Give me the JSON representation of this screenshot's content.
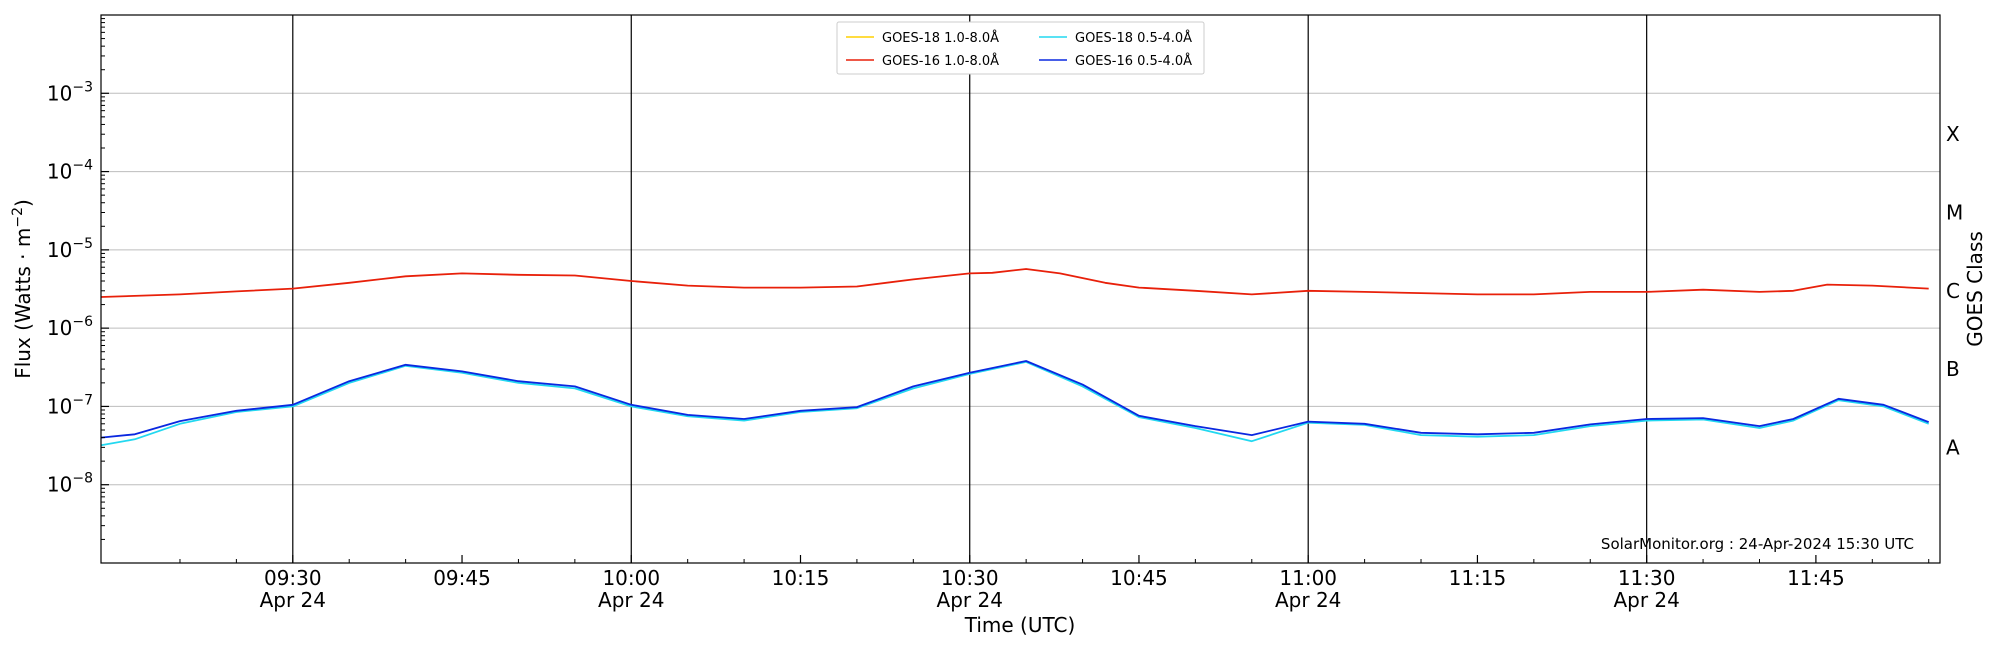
{
  "chart_data": {
    "type": "line",
    "xlabel": "Time (UTC)",
    "ylabel": "Flux (Watts · m",
    "ylabel_sup": "−2",
    "ylabel_close": ")",
    "right_ylabel": "GOES Class",
    "ylim": [
      1e-09,
      0.01
    ],
    "y_scale": "log",
    "xlim": [
      "2024-04-24T09:13",
      "2024-04-24T11:56"
    ],
    "y_ticks": [
      {
        "value": 1e-08,
        "base": "10",
        "exp": "−8"
      },
      {
        "value": 1e-07,
        "base": "10",
        "exp": "−7"
      },
      {
        "value": 1e-06,
        "base": "10",
        "exp": "−6"
      },
      {
        "value": 1e-05,
        "base": "10",
        "exp": "−5"
      },
      {
        "value": 0.0001,
        "base": "10",
        "exp": "−4"
      },
      {
        "value": 0.001,
        "base": "10",
        "exp": "−3"
      }
    ],
    "x_ticks": [
      {
        "time": "09:30",
        "label": "09:30",
        "date": "Apr 24"
      },
      {
        "time": "09:45",
        "label": "09:45",
        "date": ""
      },
      {
        "time": "10:00",
        "label": "10:00",
        "date": "Apr 24"
      },
      {
        "time": "10:15",
        "label": "10:15",
        "date": ""
      },
      {
        "time": "10:30",
        "label": "10:30",
        "date": "Apr 24"
      },
      {
        "time": "10:45",
        "label": "10:45",
        "date": ""
      },
      {
        "time": "11:00",
        "label": "11:00",
        "date": "Apr 24"
      },
      {
        "time": "11:15",
        "label": "11:15",
        "date": ""
      },
      {
        "time": "11:30",
        "label": "11:30",
        "date": "Apr 24"
      },
      {
        "time": "11:45",
        "label": "11:45",
        "date": ""
      }
    ],
    "vertical_lines": [
      "09:30",
      "10:00",
      "10:30",
      "11:00",
      "11:30"
    ],
    "goes_classes": [
      {
        "label": "A",
        "value": 3e-08
      },
      {
        "label": "B",
        "value": 3e-07
      },
      {
        "label": "C",
        "value": 3e-06
      },
      {
        "label": "M",
        "value": 3e-05
      },
      {
        "label": "X",
        "value": 0.0003
      }
    ],
    "grid": true,
    "legend_position": "top-center",
    "annotation": "SolarMonitor.org : 24-Apr-2024 15:30 UTC",
    "series": [
      {
        "name": "GOES-18 1.0-8.0Å",
        "color": "#ffd000",
        "points": []
      },
      {
        "name": "GOES-16 1.0-8.0Å",
        "color": "#e8200a",
        "points": [
          [
            "09:13",
            2.5e-06
          ],
          [
            "09:20",
            2.7e-06
          ],
          [
            "09:25",
            2.95e-06
          ],
          [
            "09:30",
            3.2e-06
          ],
          [
            "09:35",
            3.8e-06
          ],
          [
            "09:40",
            4.6e-06
          ],
          [
            "09:45",
            5e-06
          ],
          [
            "09:50",
            4.8e-06
          ],
          [
            "09:55",
            4.7e-06
          ],
          [
            "10:00",
            4e-06
          ],
          [
            "10:05",
            3.5e-06
          ],
          [
            "10:10",
            3.3e-06
          ],
          [
            "10:15",
            3.3e-06
          ],
          [
            "10:20",
            3.4e-06
          ],
          [
            "10:25",
            4.2e-06
          ],
          [
            "10:30",
            5e-06
          ],
          [
            "10:32",
            5.1e-06
          ],
          [
            "10:35",
            5.7e-06
          ],
          [
            "10:38",
            5e-06
          ],
          [
            "10:42",
            3.8e-06
          ],
          [
            "10:45",
            3.3e-06
          ],
          [
            "10:50",
            3e-06
          ],
          [
            "10:55",
            2.7e-06
          ],
          [
            "11:00",
            3e-06
          ],
          [
            "11:05",
            2.9e-06
          ],
          [
            "11:10",
            2.8e-06
          ],
          [
            "11:15",
            2.7e-06
          ],
          [
            "11:20",
            2.7e-06
          ],
          [
            "11:25",
            2.9e-06
          ],
          [
            "11:30",
            2.9e-06
          ],
          [
            "11:35",
            3.1e-06
          ],
          [
            "11:40",
            2.9e-06
          ],
          [
            "11:43",
            3e-06
          ],
          [
            "11:46",
            3.6e-06
          ],
          [
            "11:50",
            3.5e-06
          ],
          [
            "11:55",
            3.2e-06
          ]
        ]
      },
      {
        "name": "GOES-18 0.5-4.0Å",
        "color": "#22d8f0",
        "points": [
          [
            "09:13",
            3.2e-08
          ],
          [
            "09:16",
            3.8e-08
          ],
          [
            "09:20",
            6e-08
          ],
          [
            "09:25",
            8.5e-08
          ],
          [
            "09:30",
            1e-07
          ],
          [
            "09:35",
            2e-07
          ],
          [
            "09:40",
            3.3e-07
          ],
          [
            "09:45",
            2.7e-07
          ],
          [
            "09:50",
            2e-07
          ],
          [
            "09:55",
            1.7e-07
          ],
          [
            "10:00",
            1e-07
          ],
          [
            "10:05",
            7.5e-08
          ],
          [
            "10:10",
            6.6e-08
          ],
          [
            "10:15",
            8.5e-08
          ],
          [
            "10:20",
            9.5e-08
          ],
          [
            "10:25",
            1.7e-07
          ],
          [
            "10:30",
            2.6e-07
          ],
          [
            "10:35",
            3.7e-07
          ],
          [
            "10:40",
            1.8e-07
          ],
          [
            "10:45",
            7.3e-08
          ],
          [
            "10:50",
            5.3e-08
          ],
          [
            "10:55",
            3.6e-08
          ],
          [
            "11:00",
            6.2e-08
          ],
          [
            "11:05",
            5.8e-08
          ],
          [
            "11:10",
            4.3e-08
          ],
          [
            "11:15",
            4.1e-08
          ],
          [
            "11:20",
            4.3e-08
          ],
          [
            "11:25",
            5.6e-08
          ],
          [
            "11:30",
            6.6e-08
          ],
          [
            "11:35",
            6.8e-08
          ],
          [
            "11:40",
            5.3e-08
          ],
          [
            "11:43",
            6.6e-08
          ],
          [
            "11:47",
            1.2e-07
          ],
          [
            "11:51",
            1e-07
          ],
          [
            "11:55",
            6e-08
          ]
        ]
      },
      {
        "name": "GOES-16 0.5-4.0Å",
        "color": "#0a28e0",
        "points": [
          [
            "09:13",
            4e-08
          ],
          [
            "09:16",
            4.4e-08
          ],
          [
            "09:20",
            6.5e-08
          ],
          [
            "09:25",
            8.8e-08
          ],
          [
            "09:30",
            1.05e-07
          ],
          [
            "09:35",
            2.1e-07
          ],
          [
            "09:40",
            3.4e-07
          ],
          [
            "09:45",
            2.8e-07
          ],
          [
            "09:50",
            2.1e-07
          ],
          [
            "09:55",
            1.8e-07
          ],
          [
            "10:00",
            1.05e-07
          ],
          [
            "10:05",
            7.8e-08
          ],
          [
            "10:10",
            6.9e-08
          ],
          [
            "10:15",
            8.8e-08
          ],
          [
            "10:20",
            9.8e-08
          ],
          [
            "10:25",
            1.8e-07
          ],
          [
            "10:30",
            2.7e-07
          ],
          [
            "10:35",
            3.8e-07
          ],
          [
            "10:40",
            1.9e-07
          ],
          [
            "10:45",
            7.6e-08
          ],
          [
            "10:50",
            5.6e-08
          ],
          [
            "10:55",
            4.3e-08
          ],
          [
            "11:00",
            6.4e-08
          ],
          [
            "11:05",
            6e-08
          ],
          [
            "11:10",
            4.6e-08
          ],
          [
            "11:15",
            4.4e-08
          ],
          [
            "11:20",
            4.6e-08
          ],
          [
            "11:25",
            5.9e-08
          ],
          [
            "11:30",
            6.9e-08
          ],
          [
            "11:35",
            7.1e-08
          ],
          [
            "11:40",
            5.6e-08
          ],
          [
            "11:43",
            6.9e-08
          ],
          [
            "11:47",
            1.25e-07
          ],
          [
            "11:51",
            1.05e-07
          ],
          [
            "11:55",
            6.3e-08
          ]
        ]
      }
    ]
  }
}
